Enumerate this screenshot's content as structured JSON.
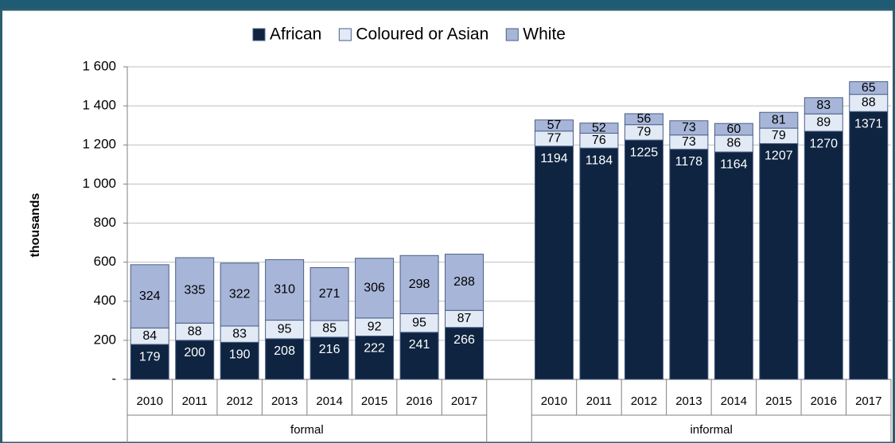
{
  "chart_data": {
    "type": "stacked-bar",
    "y_label": "thousands",
    "categories": [
      "2010",
      "2011",
      "2012",
      "2013",
      "2014",
      "2015",
      "2016",
      "2017",
      null,
      "2010",
      "2011",
      "2012",
      "2013",
      "2014",
      "2015",
      "2016",
      "2017"
    ],
    "group_labels": [
      "formal",
      "informal"
    ],
    "series": [
      {
        "name": "African",
        "color": "#0e2441",
        "label_color": "#ffffff",
        "values": [
          179,
          200,
          190,
          208,
          216,
          222,
          241,
          266,
          null,
          1194,
          1184,
          1225,
          1178,
          1164,
          1207,
          1270,
          1371
        ]
      },
      {
        "name": "Coloured or Asian",
        "color": "#e2eaf6",
        "label_color": "#000000",
        "values": [
          84,
          88,
          83,
          95,
          85,
          92,
          95,
          87,
          null,
          77,
          76,
          79,
          73,
          86,
          79,
          89,
          88
        ]
      },
      {
        "name": "White",
        "color": "#a7b5d8",
        "label_color": "#000000",
        "values": [
          324,
          335,
          322,
          310,
          271,
          306,
          298,
          288,
          null,
          57,
          52,
          56,
          73,
          60,
          81,
          83,
          65
        ]
      }
    ],
    "ylim": [
      0,
      1600
    ],
    "yticks": [
      {
        "value": 0,
        "label": "-"
      },
      200,
      400,
      600,
      800,
      {
        "value": 1000,
        "label": "1 000"
      },
      {
        "value": 1200,
        "label": "1 200"
      },
      {
        "value": 1400,
        "label": "1 400"
      },
      {
        "value": 1600,
        "label": "1 600"
      }
    ],
    "grid": true,
    "legend": "top"
  }
}
